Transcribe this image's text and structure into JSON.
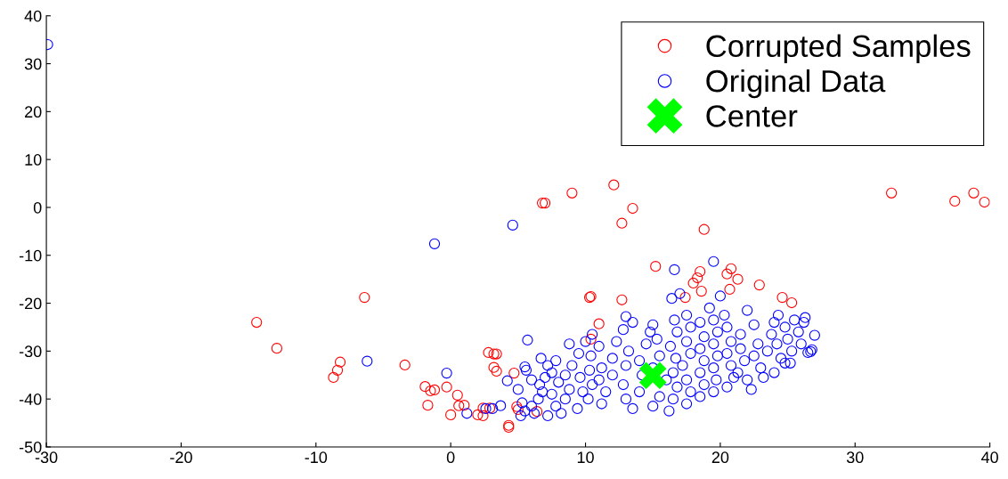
{
  "chart_data": {
    "type": "scatter",
    "xlim": [
      -30,
      40
    ],
    "ylim": [
      -50,
      40
    ],
    "xticks": [
      -30,
      -20,
      -10,
      0,
      10,
      20,
      30,
      40
    ],
    "yticks": [
      -50,
      -40,
      -30,
      -20,
      -10,
      0,
      10,
      20,
      30,
      40
    ],
    "grid": false,
    "legend": "top right",
    "marker": "circle",
    "series": [
      {
        "name": "Corrupted Samples",
        "color": "#ff0000",
        "x": [
          -14.4,
          -12.9,
          -8.2,
          -8.4,
          -8.7,
          -6.4,
          -3.4,
          -1.9,
          -1.5,
          -1.2,
          -1.7,
          -0.3,
          0.0,
          0.5,
          0.6,
          1.0,
          2.0,
          2.4,
          2.4,
          2.9,
          2.8,
          3.2,
          3.4,
          3.2,
          3.4,
          4.7,
          4.3,
          4.3,
          4.9,
          5.0,
          6.4,
          7.0,
          6.8,
          9.0,
          12.1,
          13.5,
          12.7,
          18.8,
          32.7,
          37.4,
          38.8,
          39.6,
          10.4,
          10.3,
          12.7,
          11.0,
          10.4,
          15.2,
          18.5,
          18.3,
          18.0,
          18.6,
          17.4,
          20.8,
          20.5,
          21.3,
          20.7,
          22.9,
          24.6,
          25.3
        ],
        "values": [
          -24.0,
          -29.4,
          -32.3,
          -34.0,
          -35.5,
          -18.8,
          -32.9,
          -37.4,
          -38.3,
          -38.1,
          -41.3,
          -37.5,
          -43.3,
          -39.2,
          -41.4,
          -41.3,
          -43.3,
          -43.5,
          -41.9,
          -41.9,
          -30.3,
          -30.6,
          -30.6,
          -33.4,
          -34.2,
          -34.6,
          -45.5,
          -45.9,
          -41.6,
          -42.2,
          -42.6,
          0.9,
          0.9,
          3.0,
          4.7,
          -0.2,
          -3.3,
          -4.6,
          3.0,
          1.3,
          3.0,
          1.1,
          -18.6,
          -18.8,
          -19.3,
          -24.3,
          -27.5,
          -12.3,
          -13.4,
          -14.7,
          -15.8,
          -17.5,
          -18.8,
          -12.8,
          -13.9,
          -15.0,
          -17.1,
          -16.2,
          -18.8,
          -19.9
        ]
      },
      {
        "name": "Original Data",
        "color": "#0000ff",
        "x": [
          5.7,
          5.5,
          5.6,
          6.0,
          5.0,
          5.3,
          5.5,
          5.2,
          6.0,
          6.2,
          6.5,
          6.8,
          6.6,
          7.0,
          7.2,
          6.7,
          7.8,
          7.5,
          8.0,
          7.5,
          7.8,
          8.2,
          7.2,
          8.5,
          8.8,
          8.5,
          9.0,
          8.8,
          9.5,
          9.6,
          9.8,
          9.4,
          10.2,
          10.5,
          10.3,
          10.4,
          10.0,
          10.5,
          11.0,
          11.2,
          11.0,
          11.5,
          11.2,
          12.0,
          12.0,
          12.3,
          12.8,
          13.0,
          13.5,
          13.2,
          13.0,
          12.8,
          13.0,
          13.5,
          14.0,
          14.2,
          14.0,
          14.5,
          14.8,
          15.0,
          15.3,
          15.5,
          15.0,
          16.0,
          15.5,
          15.0,
          16.2,
          16.5,
          16.8,
          16.5,
          16.7,
          16.3,
          16.8,
          16.6,
          16.4,
          17.0,
          17.5,
          17.8,
          17.5,
          17.8,
          17.2,
          17.5,
          17.8,
          17.5,
          18.5,
          18.8,
          18.5,
          18.8,
          18.5,
          18.8,
          18.5,
          19.2,
          19.5,
          19.8,
          19.5,
          19.8,
          19.5,
          19.7,
          19.5,
          20.0,
          20.3,
          20.5,
          20.8,
          20.5,
          20.8,
          21.0,
          20.5,
          21.5,
          21.5,
          21.8,
          21.3,
          22.0,
          22.3,
          22.0,
          22.5,
          22.8,
          22.5,
          23.0,
          23.2,
          23.5,
          23.8,
          24.0,
          24.2,
          24.5,
          24.0,
          24.8,
          25.0,
          25.3,
          24.8,
          25.5,
          25.8,
          26.2,
          26.0,
          26.3,
          24.3,
          25.2,
          19.5,
          16.6,
          27.0,
          26.8,
          26.7,
          26.5,
          -1.2,
          -6.2,
          -0.3,
          4.2,
          1.2,
          2.6,
          3.1,
          3.7,
          -29.9,
          4.6
        ],
        "values": [
          -27.7,
          -33.3,
          -34.0,
          -36.0,
          -38.0,
          -40.8,
          -42.5,
          -43.5,
          -41.5,
          -43.0,
          -40.0,
          -38.5,
          -37.0,
          -35.5,
          -33.0,
          -31.5,
          -32.0,
          -34.5,
          -36.5,
          -39.0,
          -41.5,
          -43.0,
          -43.5,
          -40.0,
          -38.0,
          -35.0,
          -33.0,
          -28.5,
          -30.5,
          -35.5,
          -38.5,
          -42.0,
          -40.0,
          -37.0,
          -34.0,
          -31.0,
          -28.0,
          -26.5,
          -29.0,
          -33.5,
          -36.0,
          -38.5,
          -41.0,
          -35.0,
          -31.5,
          -28.0,
          -25.5,
          -22.8,
          -24.0,
          -30.0,
          -33.0,
          -37.0,
          -40.0,
          -42.0,
          -38.5,
          -35.0,
          -32.0,
          -28.5,
          -26.0,
          -24.5,
          -27.5,
          -31.0,
          -33.5,
          -36.0,
          -39.5,
          -41.5,
          -42.5,
          -40.0,
          -37.5,
          -34.5,
          -31.5,
          -29.0,
          -26.0,
          -23.5,
          -19.0,
          -18.0,
          -22.5,
          -25.0,
          -28.0,
          -30.5,
          -33.0,
          -36.0,
          -38.5,
          -41.0,
          -39.5,
          -37.0,
          -34.5,
          -32.0,
          -29.5,
          -27.0,
          -24.0,
          -21.0,
          -23.5,
          -26.0,
          -28.5,
          -31.0,
          -33.5,
          -36.0,
          -38.5,
          -18.5,
          -22.5,
          -25.0,
          -28.0,
          -30.5,
          -33.0,
          -35.5,
          -37.5,
          -26.5,
          -29.5,
          -32.0,
          -34.5,
          -36.0,
          -38.0,
          -21.5,
          -24.5,
          -28.5,
          -31.0,
          -33.5,
          -35.5,
          -30.0,
          -26.5,
          -24.0,
          -28.5,
          -31.5,
          -34.5,
          -25.0,
          -27.5,
          -30.0,
          -32.5,
          -23.5,
          -26.0,
          -24.0,
          -28.5,
          -23.0,
          -22.5,
          -32.5,
          -11.3,
          -13.0,
          -26.7,
          -29.7,
          -30.1,
          -30.3,
          -7.6,
          -32.1,
          -34.6,
          -36.2,
          -43.0,
          -42.0,
          -42.0,
          -41.4,
          34.0,
          -3.7
        ]
      },
      {
        "name": "Center",
        "color": "#00ff00",
        "marker": "cross",
        "x": [
          15.0
        ],
        "values": [
          -35.1
        ]
      }
    ]
  }
}
